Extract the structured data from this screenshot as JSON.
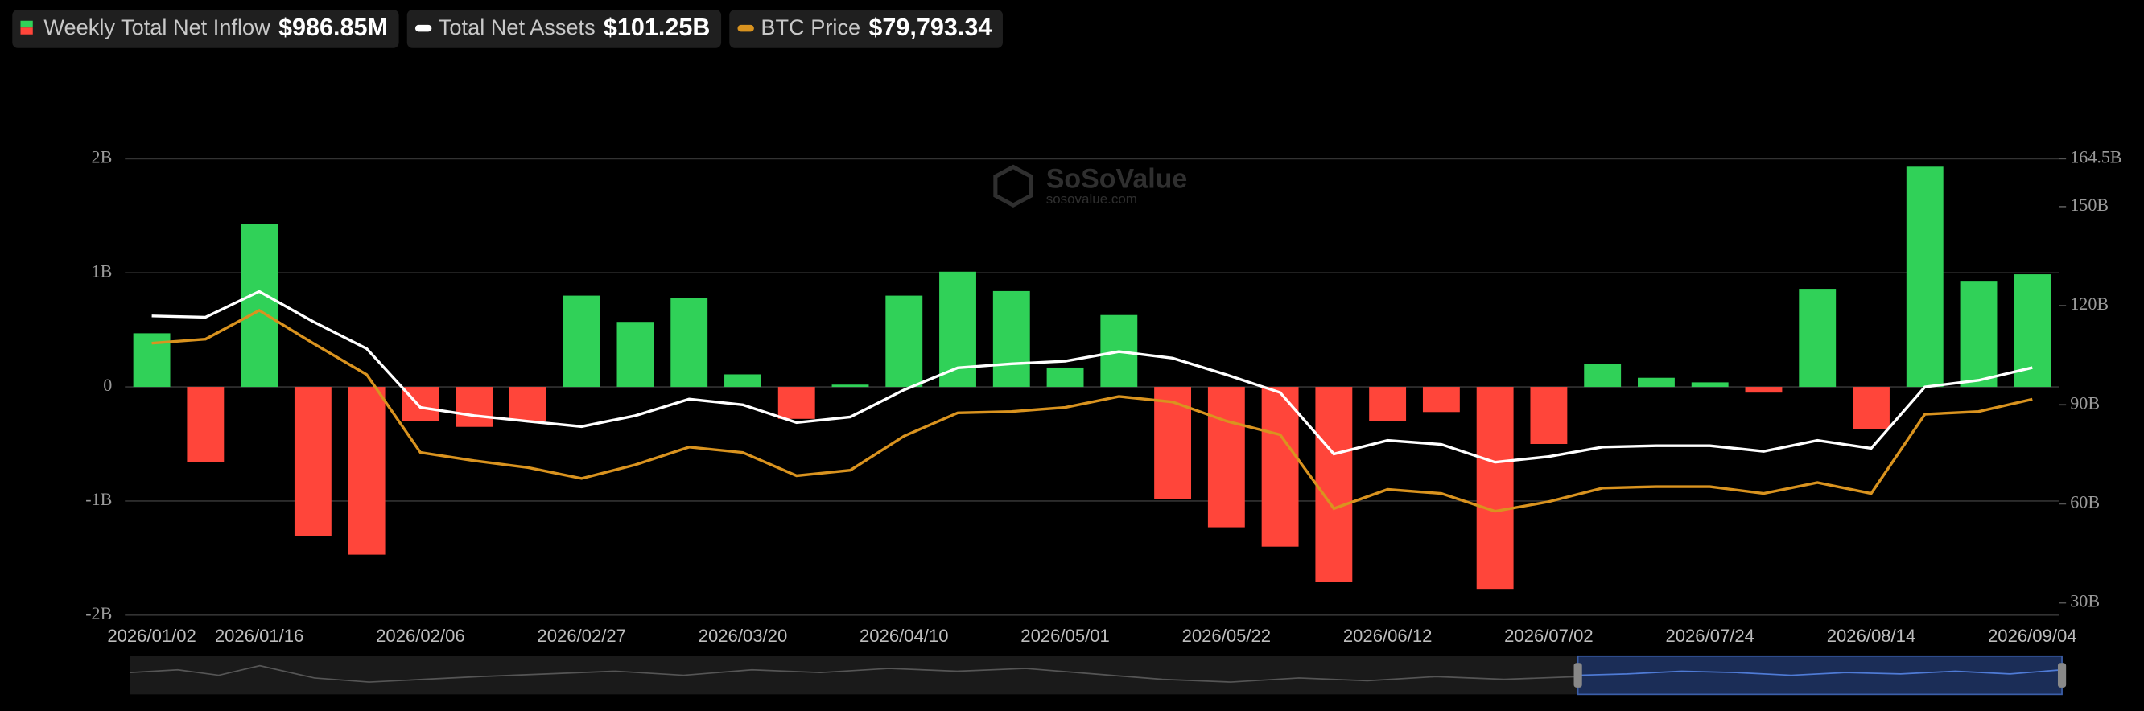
{
  "chart_data": {
    "type": "bar-line",
    "legend": [
      {
        "name": "Weekly Total Net Inflow",
        "summary": "$986.85M"
      },
      {
        "name": "Total Net Assets",
        "summary": "$101.25B"
      },
      {
        "name": "BTC Price",
        "summary": "$79,793.34"
      }
    ],
    "watermark": {
      "brand": "SoSoValue",
      "site": "sosovalue.com"
    },
    "categories": [
      "2026/01/02",
      null,
      "2026/01/16",
      null,
      null,
      "2026/02/06",
      null,
      null,
      "2026/02/27",
      null,
      null,
      "2026/03/20",
      null,
      null,
      "2026/04/10",
      null,
      null,
      "2026/05/01",
      null,
      null,
      "2026/05/22",
      null,
      null,
      "2026/06/12",
      null,
      null,
      "2026/07/02",
      null,
      null,
      "2026/07/24",
      null,
      null,
      "2026/08/14",
      null,
      null,
      "2026/09/04"
    ],
    "series": [
      {
        "name": "Weekly Total Net Inflow",
        "axis": "y",
        "positive_color": "#30d158",
        "negative_color": "#ff453a",
        "values": [
          0.47,
          -0.66,
          1.43,
          -1.31,
          -1.47,
          -0.3,
          -0.35,
          -0.3,
          0.8,
          0.57,
          0.78,
          0.11,
          -0.28,
          0.02,
          0.8,
          1.01,
          0.84,
          0.17,
          0.63,
          -0.98,
          -1.23,
          -1.4,
          -1.71,
          -0.3,
          -0.22,
          -1.77,
          -0.5,
          0.2,
          0.08,
          0.04,
          -0.05,
          0.86,
          -0.37,
          1.93,
          0.93,
          0.98685
        ]
      },
      {
        "name": "Total Net Assets",
        "axis": "y2",
        "color": "#ffffff",
        "values": [
          116.9,
          116.5,
          124.3,
          115.2,
          107.0,
          89.2,
          86.7,
          85.0,
          83.4,
          86.7,
          91.7,
          90.0,
          84.6,
          86.3,
          94.5,
          101.2,
          102.4,
          103.2,
          106.1,
          104.1,
          99.1,
          93.7,
          75.1,
          79.2,
          78.0,
          72.6,
          74.3,
          77.2,
          77.6,
          77.6,
          75.9,
          79.2,
          76.8,
          95.4,
          97.4,
          101.25
        ]
      },
      {
        "name": "BTC Price",
        "axis": "y3",
        "color": "#d9931f",
        "values": [
          89690,
          90410,
          95480,
          89690,
          84140,
          70380,
          68930,
          67720,
          65790,
          68210,
          71340,
          70380,
          66280,
          67240,
          73280,
          77380,
          77620,
          78350,
          80280,
          79310,
          75930,
          73520,
          60480,
          63860,
          63140,
          60000,
          61690,
          64100,
          64350,
          64350,
          63140,
          65070,
          63140,
          77140,
          77620,
          79793.34
        ]
      }
    ],
    "ylim": [
      -2,
      2
    ],
    "yticks": [
      {
        "value": -2,
        "label": "-2B"
      },
      {
        "value": -1,
        "label": "-1B"
      },
      {
        "value": 0,
        "label": "0"
      },
      {
        "value": 1,
        "label": "1B"
      },
      {
        "value": 2,
        "label": "2B"
      }
    ],
    "y2lim": [
      26.3,
      164.5
    ],
    "y2ticks": [
      {
        "value": 30,
        "label": "30B"
      },
      {
        "value": 60,
        "label": "60B"
      },
      {
        "value": 90,
        "label": "90B"
      },
      {
        "value": 120,
        "label": "120B"
      },
      {
        "value": 150,
        "label": "150B"
      },
      {
        "value": 164.5,
        "label": "164.5B"
      }
    ],
    "y3lim": [
      41650,
      122280
    ],
    "grid": true
  }
}
